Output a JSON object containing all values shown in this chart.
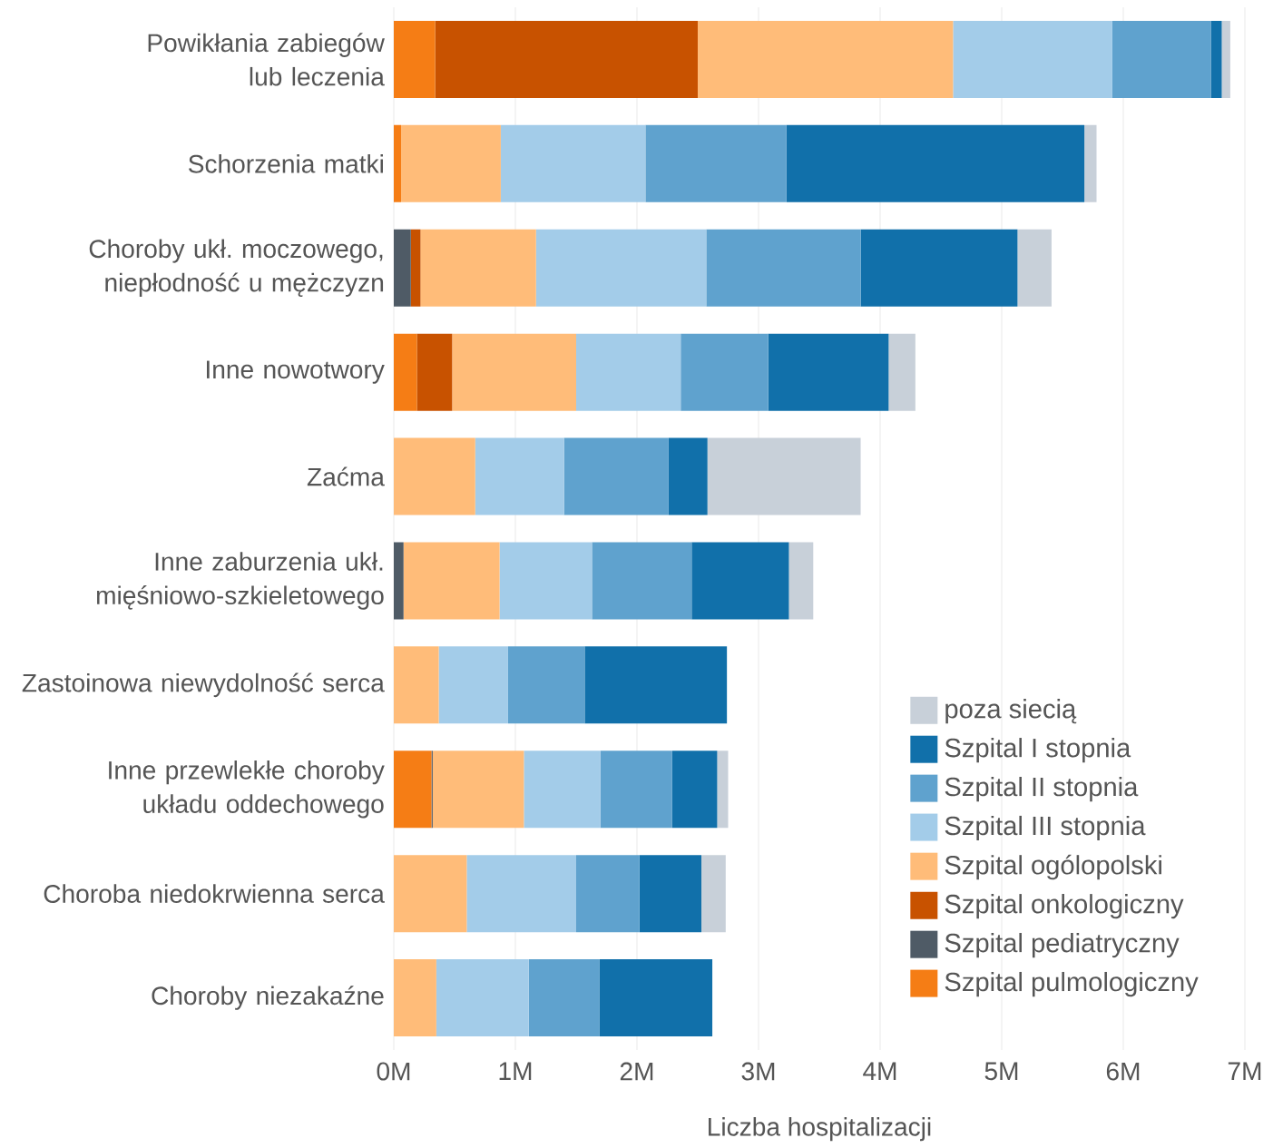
{
  "chart_data": {
    "type": "bar",
    "orientation": "horizontal",
    "stacked": true,
    "xlabel": "Liczba hospitalizacji",
    "categories": [
      "Powikłania zabiegów lub leczenia",
      "Schorzenia matki",
      "Choroby ukł. moczowego, niepłodność u mężczyzn",
      "Inne nowotwory",
      "Zaćma",
      "Inne zaburzenia ukł. mięśniowo-szkieletowego",
      "Zastoinowa niewydolność serca",
      "Inne przewlekłe choroby układu oddechowego",
      "Choroba niedokrwienna serca",
      "Choroby niezakaźne"
    ],
    "series": [
      {
        "name": "Szpital pulmologiczny",
        "color": "#f57d15",
        "values": [
          0.34,
          0.06,
          0,
          0.19,
          0,
          0,
          0,
          0.31,
          0,
          0
        ]
      },
      {
        "name": "Szpital pediatryczny",
        "color": "#4f5b66",
        "values": [
          0,
          0,
          0.14,
          0,
          0,
          0.08,
          0,
          0.01,
          0,
          0
        ]
      },
      {
        "name": "Szpital onkologiczny",
        "color": "#c85200",
        "values": [
          2.16,
          0,
          0.08,
          0.29,
          0,
          0,
          0,
          0,
          0,
          0
        ]
      },
      {
        "name": "Szpital ogólopolski",
        "color": "#ffbc79",
        "values": [
          2.1,
          0.82,
          0.95,
          1.02,
          0.67,
          0.79,
          0.37,
          0.75,
          0.6,
          0.35
        ]
      },
      {
        "name": "Szpital III stopnia",
        "color": "#a3cce9",
        "values": [
          1.31,
          1.19,
          1.4,
          0.86,
          0.73,
          0.76,
          0.57,
          0.63,
          0.9,
          0.76
        ]
      },
      {
        "name": "Szpital II stopnia",
        "color": "#5fa2ce",
        "values": [
          0.81,
          1.16,
          1.27,
          0.72,
          0.86,
          0.82,
          0.63,
          0.59,
          0.52,
          0.58
        ]
      },
      {
        "name": "Szpital I stopnia",
        "color": "#1170aa",
        "values": [
          0.09,
          2.45,
          1.29,
          0.99,
          0.32,
          0.8,
          1.17,
          0.37,
          0.51,
          0.93
        ]
      },
      {
        "name": "poza siecią",
        "color": "#c8d0d9",
        "values": [
          0.07,
          0.1,
          0.28,
          0.22,
          1.26,
          0.2,
          0,
          0.09,
          0.2,
          0
        ]
      }
    ],
    "xlim": [
      0,
      7
    ],
    "xticks": [
      {
        "value": 0,
        "label": "0M"
      },
      {
        "value": 1,
        "label": "1M"
      },
      {
        "value": 2,
        "label": "2M"
      },
      {
        "value": 3,
        "label": "3M"
      },
      {
        "value": 4,
        "label": "4M"
      },
      {
        "value": 5,
        "label": "5M"
      },
      {
        "value": 6,
        "label": "6M"
      },
      {
        "value": 7,
        "label": "7M"
      }
    ],
    "grid": "x",
    "legend": "bottom right"
  }
}
